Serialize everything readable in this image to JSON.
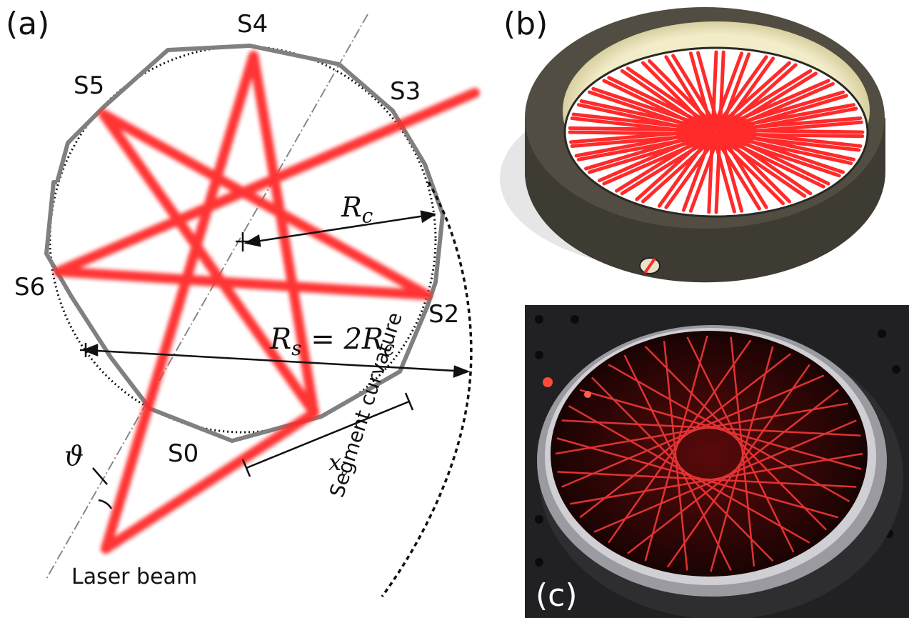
{
  "panels": {
    "a": "(a)",
    "b": "(b)",
    "c": "(c)"
  },
  "segments": {
    "s0": "S0",
    "s2": "S2",
    "s3": "S3",
    "s4": "S4",
    "s5": "S5",
    "s6": "S6"
  },
  "annotations": {
    "rc": "R",
    "rc_sub": "c",
    "rs": "R",
    "rs_sub": "s",
    "rs_eq": "= 2R",
    "rs_eq_sub": "c",
    "x0": "x",
    "x0_sub": "o",
    "theta": "ϑ",
    "laser": "Laser beam",
    "segment_curvature": "Segment curvature"
  },
  "colors": {
    "beam": "#ff2a2a",
    "segment": "#7a7a7a",
    "ring": "#4a473e"
  }
}
